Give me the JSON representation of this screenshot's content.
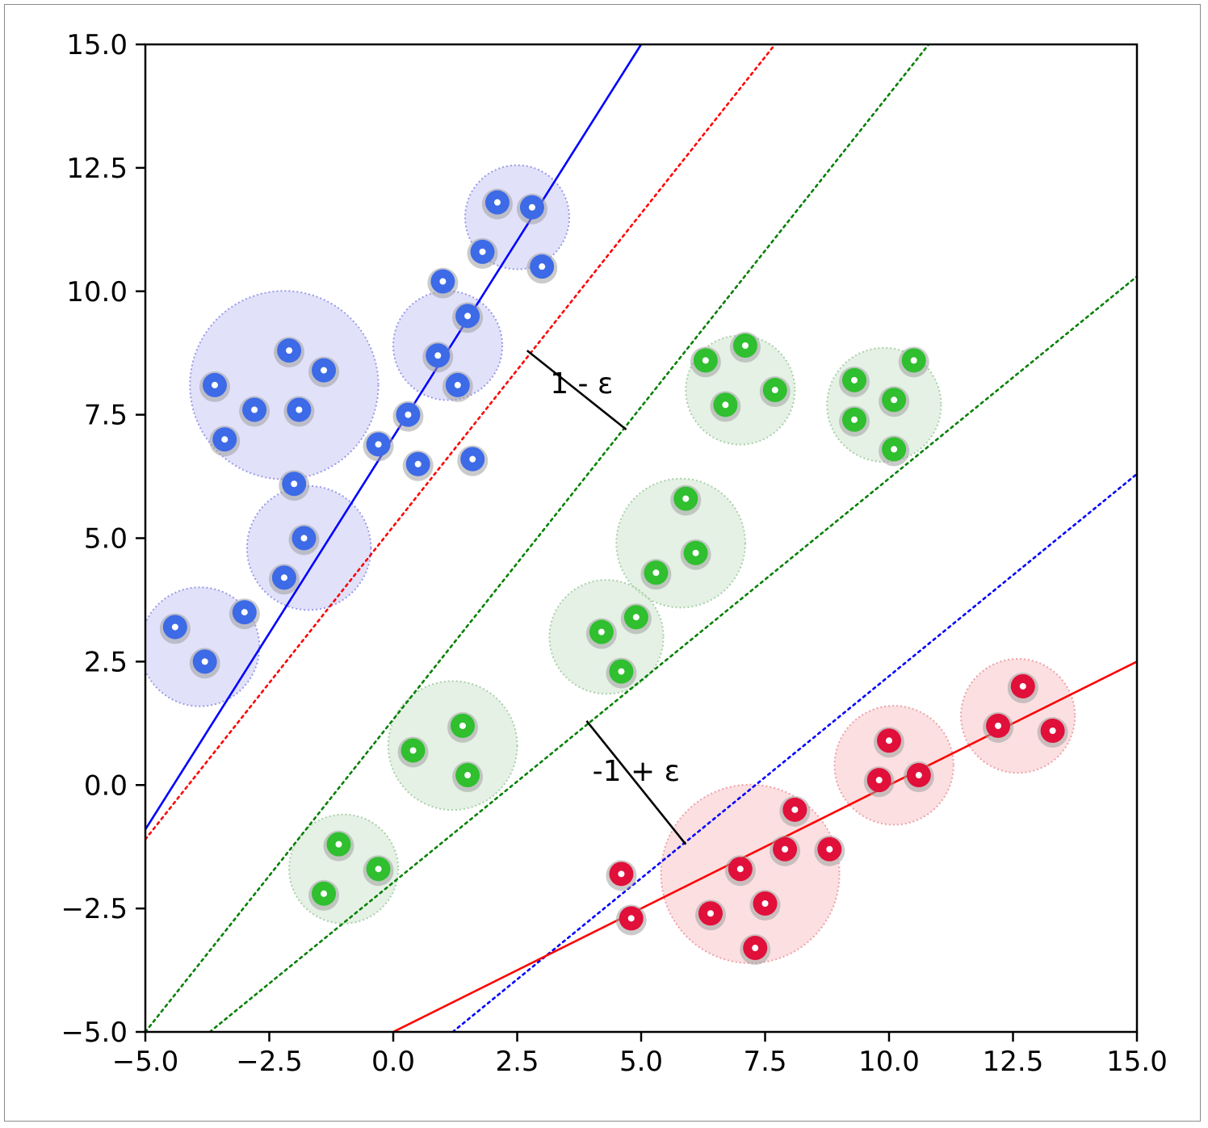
{
  "chart_data": {
    "type": "scatter",
    "title": "",
    "xlabel": "",
    "ylabel": "",
    "xlim": [
      -5.0,
      15.0
    ],
    "ylim": [
      -5.0,
      15.0
    ],
    "xticks": [
      "−5.0",
      "−2.5",
      "0.0",
      "2.5",
      "5.0",
      "7.5",
      "10.0",
      "12.5",
      "15.0"
    ],
    "yticks": [
      "15.0",
      "12.5",
      "10.0",
      "7.5",
      "5.0",
      "2.5",
      "0.0",
      "−2.5",
      "−5.0"
    ],
    "grid": false,
    "legend": "none",
    "colors": {
      "blue": "#3d6ae6",
      "green": "#2fbf2f",
      "red": "#e0103a",
      "blue_line": "#0000ff",
      "red_line": "#ff0000",
      "green_line": "#008000",
      "blue_fill": "#c8c8f5",
      "green_fill": "#cfe6cf",
      "red_fill": "#f8c4c8"
    },
    "series": [
      {
        "class": "blue",
        "points": [
          [
            2.1,
            11.8
          ],
          [
            2.8,
            11.7
          ],
          [
            1.8,
            10.8
          ],
          [
            3.0,
            10.5
          ],
          [
            1.0,
            10.2
          ],
          [
            1.5,
            9.5
          ],
          [
            0.9,
            8.7
          ],
          [
            1.3,
            8.1
          ],
          [
            -2.1,
            8.8
          ],
          [
            -1.4,
            8.4
          ],
          [
            -3.6,
            8.1
          ],
          [
            -2.8,
            7.6
          ],
          [
            -1.9,
            7.6
          ],
          [
            -3.4,
            7.0
          ],
          [
            0.3,
            7.5
          ],
          [
            -0.3,
            6.9
          ],
          [
            0.5,
            6.5
          ],
          [
            1.6,
            6.6
          ],
          [
            -2.0,
            6.1
          ],
          [
            -1.8,
            5.0
          ],
          [
            -2.2,
            4.2
          ],
          [
            -3.0,
            3.5
          ],
          [
            -4.4,
            3.2
          ],
          [
            -3.8,
            2.5
          ]
        ]
      },
      {
        "class": "green",
        "points": [
          [
            6.3,
            8.6
          ],
          [
            7.1,
            8.9
          ],
          [
            7.7,
            8.0
          ],
          [
            6.7,
            7.7
          ],
          [
            9.3,
            8.2
          ],
          [
            10.5,
            8.6
          ],
          [
            10.1,
            7.8
          ],
          [
            9.3,
            7.4
          ],
          [
            10.1,
            6.8
          ],
          [
            5.9,
            5.8
          ],
          [
            6.1,
            4.7
          ],
          [
            5.3,
            4.3
          ],
          [
            4.9,
            3.4
          ],
          [
            4.2,
            3.1
          ],
          [
            4.6,
            2.3
          ],
          [
            1.4,
            1.2
          ],
          [
            0.4,
            0.7
          ],
          [
            1.5,
            0.2
          ],
          [
            -1.1,
            -1.2
          ],
          [
            -0.3,
            -1.7
          ],
          [
            -1.4,
            -2.2
          ]
        ]
      },
      {
        "class": "red",
        "points": [
          [
            12.7,
            2.0
          ],
          [
            12.2,
            1.2
          ],
          [
            13.3,
            1.1
          ],
          [
            10.0,
            0.9
          ],
          [
            9.8,
            0.1
          ],
          [
            10.6,
            0.2
          ],
          [
            8.1,
            -0.5
          ],
          [
            7.9,
            -1.3
          ],
          [
            8.8,
            -1.3
          ],
          [
            7.0,
            -1.7
          ],
          [
            4.6,
            -1.8
          ],
          [
            7.5,
            -2.4
          ],
          [
            6.4,
            -2.6
          ],
          [
            4.8,
            -2.7
          ],
          [
            7.3,
            -3.3
          ]
        ]
      }
    ],
    "cluster_regions": [
      {
        "class": "blue",
        "center": [
          2.5,
          11.5
        ],
        "radius": 1.05
      },
      {
        "class": "blue",
        "center": [
          -2.2,
          8.1
        ],
        "radius": 1.9
      },
      {
        "class": "blue",
        "center": [
          1.1,
          8.9
        ],
        "radius": 1.1
      },
      {
        "class": "blue",
        "center": [
          -1.7,
          4.8
        ],
        "radius": 1.25
      },
      {
        "class": "blue",
        "center": [
          -3.9,
          2.8
        ],
        "radius": 1.2
      },
      {
        "class": "green",
        "center": [
          7.0,
          8.0
        ],
        "radius": 1.1
      },
      {
        "class": "green",
        "center": [
          9.9,
          7.7
        ],
        "radius": 1.15
      },
      {
        "class": "green",
        "center": [
          5.8,
          4.9
        ],
        "radius": 1.3
      },
      {
        "class": "green",
        "center": [
          4.3,
          3.0
        ],
        "radius": 1.15
      },
      {
        "class": "green",
        "center": [
          1.2,
          0.8
        ],
        "radius": 1.3
      },
      {
        "class": "green",
        "center": [
          -1.0,
          -1.7
        ],
        "radius": 1.1
      },
      {
        "class": "red",
        "center": [
          7.2,
          -1.8
        ],
        "radius": 1.8
      },
      {
        "class": "red",
        "center": [
          10.1,
          0.4
        ],
        "radius": 1.2
      },
      {
        "class": "red",
        "center": [
          12.6,
          1.4
        ],
        "radius": 1.15
      }
    ],
    "lines": [
      {
        "class": "blue",
        "style": "solid",
        "from": [
          -5.0,
          -0.9
        ],
        "to": [
          5.0,
          15.0
        ]
      },
      {
        "class": "red",
        "style": "dotted",
        "from": [
          -5.0,
          -1.1
        ],
        "to": [
          7.7,
          15.0
        ]
      },
      {
        "class": "green",
        "style": "dotted",
        "from": [
          -5.0,
          -5.0
        ],
        "to": [
          10.8,
          15.0
        ]
      },
      {
        "class": "green",
        "style": "dotted",
        "from": [
          -3.7,
          -5.0
        ],
        "to": [
          15.0,
          10.3
        ]
      },
      {
        "class": "blue",
        "style": "dotted",
        "from": [
          1.2,
          -5.0
        ],
        "to": [
          15.0,
          6.3
        ]
      },
      {
        "class": "red",
        "style": "solid",
        "from": [
          0.0,
          -5.0
        ],
        "to": [
          15.0,
          2.5
        ]
      }
    ],
    "annotations": [
      {
        "text": "1 - ε",
        "line_from": [
          2.7,
          8.8
        ],
        "line_to": [
          4.7,
          7.2
        ],
        "label_at": [
          3.8,
          8.1
        ]
      },
      {
        "text": "-1 + ε",
        "line_from": [
          3.9,
          1.3
        ],
        "line_to": [
          5.9,
          -1.2
        ],
        "label_at": [
          4.9,
          0.25
        ]
      }
    ]
  }
}
